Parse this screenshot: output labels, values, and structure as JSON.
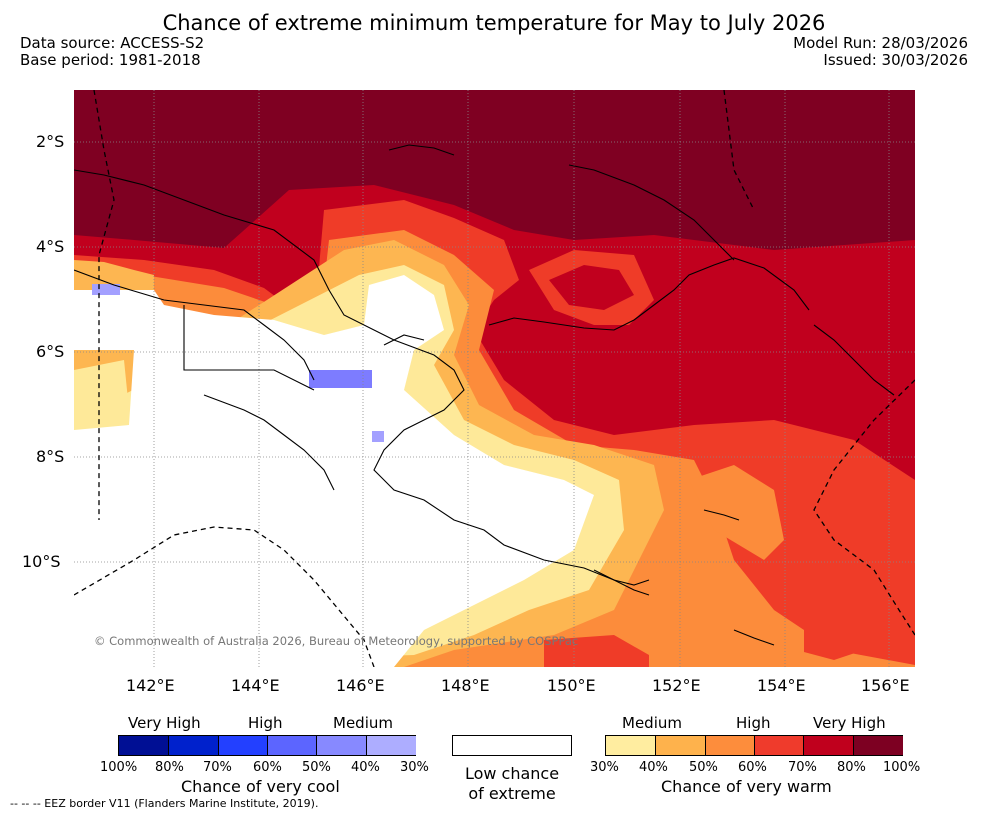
{
  "title": "Chance of extreme minimum temperature for May to July 2026",
  "info": {
    "source": "Data source: ACCESS-S2",
    "base_period": "Base period: 1981-2018",
    "model_run": "Model Run: 28/03/2026",
    "issued": "Issued: 30/03/2026"
  },
  "map": {
    "copyright": "© Commonwealth of Australia 2026, Bureau of Meteorology, supported by COSPPac",
    "lat_labels": [
      "2°S",
      "4°S",
      "6°S",
      "8°S",
      "10°S"
    ],
    "lon_labels": [
      "142°E",
      "144°E",
      "146°E",
      "148°E",
      "150°E",
      "152°E",
      "154°E",
      "156°E"
    ],
    "colors": {
      "warm_30": "#fee999",
      "warm_40": "#fdb651",
      "warm_50": "#fc8c3b",
      "warm_60": "#ef3c28",
      "warm_70": "#c1001e",
      "warm_80": "#7f0022",
      "cool_30": "#a3a0ff",
      "cool_40": "#7d7cff",
      "land_border": "#000000"
    }
  },
  "legend": {
    "cool": {
      "headers": [
        "Very High",
        "High",
        "Medium"
      ],
      "ticks": [
        "100%",
        "80%",
        "70%",
        "60%",
        "50%",
        "40%",
        "30%"
      ],
      "colors": [
        "#000f94",
        "#0021cc",
        "#2340ff",
        "#5c65ff",
        "#8789ff",
        "#adadff"
      ],
      "caption": "Chance of very cool"
    },
    "neutral": {
      "line1": "Low chance",
      "line2": "of extreme"
    },
    "warm": {
      "headers": [
        "Medium",
        "High",
        "Very High"
      ],
      "ticks": [
        "30%",
        "40%",
        "50%",
        "60%",
        "70%",
        "80%",
        "100%"
      ],
      "colors": [
        "#ffeda0",
        "#feb24c",
        "#fd8d3c",
        "#ef3b2c",
        "#c0001d",
        "#7d0022"
      ],
      "caption": "Chance of very warm"
    }
  },
  "eez_note": "-- -- -- EEZ border V11 (Flanders Marine Institute, 2019)."
}
